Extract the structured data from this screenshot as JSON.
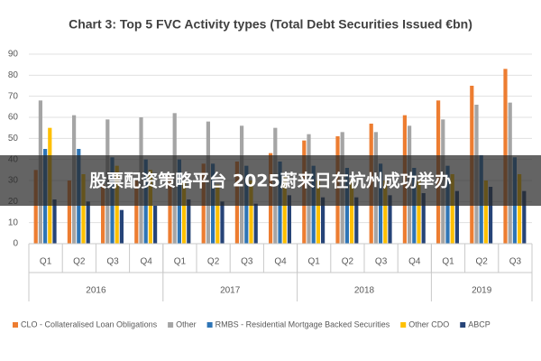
{
  "chart_data": {
    "type": "bar",
    "title": "Chart 3: Top 5 FVC Activity types (Total Debt Securities Issued €bn)",
    "groups": [
      {
        "label": "2016",
        "categories": [
          "Q1",
          "Q2",
          "Q3",
          "Q4"
        ]
      },
      {
        "label": "2017",
        "categories": [
          "Q1",
          "Q2",
          "Q3",
          "Q4"
        ]
      },
      {
        "label": "2018",
        "categories": [
          "Q1",
          "Q2",
          "Q3",
          "Q4"
        ]
      },
      {
        "label": "2019",
        "categories": [
          "Q1",
          "Q2",
          "Q3"
        ]
      }
    ],
    "series": [
      {
        "name": "CLO - Collateralised Loan Obligations",
        "color": "#ed7d31",
        "values": [
          35,
          30,
          28,
          30,
          32,
          38,
          39,
          43,
          49,
          51,
          57,
          61,
          68,
          75,
          83
        ]
      },
      {
        "name": "Other",
        "color": "#a5a5a5",
        "values": [
          68,
          61,
          59,
          60,
          62,
          58,
          56,
          55,
          52,
          53,
          53,
          56,
          59,
          66,
          67
        ]
      },
      {
        "name": "RMBS - Residential Mortgage Backed Securities",
        "color": "#2e75b6",
        "values": [
          45,
          45,
          41,
          40,
          40,
          38,
          37,
          39,
          37,
          36,
          38,
          36,
          37,
          42,
          41
        ]
      },
      {
        "name": "Other CDO",
        "color": "#ffc000",
        "values": [
          55,
          33,
          37,
          35,
          30,
          28,
          30,
          32,
          30,
          30,
          30,
          30,
          33,
          30,
          33
        ]
      },
      {
        "name": "ABCP",
        "color": "#264478",
        "values": [
          21,
          20,
          16,
          18,
          21,
          20,
          19,
          23,
          22,
          22,
          23,
          24,
          25,
          27,
          25
        ]
      }
    ],
    "ylim": [
      0,
      90
    ],
    "yticks": [
      0,
      10,
      20,
      30,
      40,
      50,
      60,
      70,
      80,
      90
    ],
    "grid": true,
    "legend": "bottom"
  },
  "overlay_text": "股票配资策略平台 2025蔚来日在杭州成功举办"
}
